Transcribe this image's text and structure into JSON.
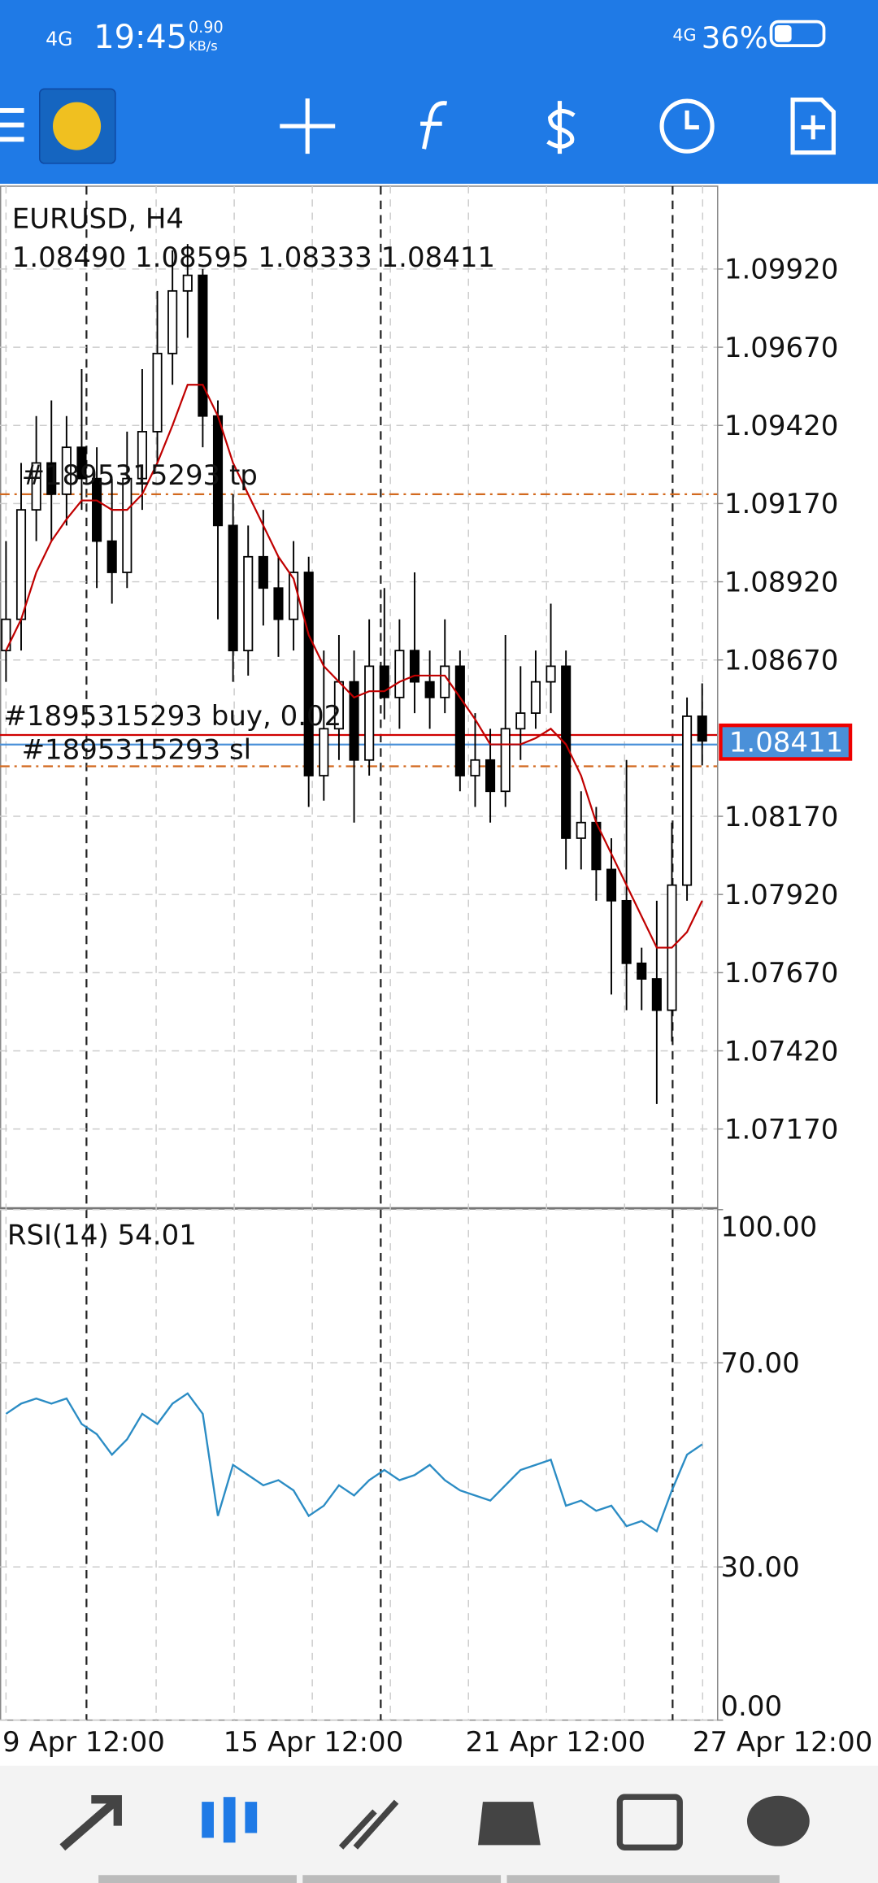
{
  "status_bar": {
    "network": "4G",
    "time": "19:45",
    "speed": "0.90",
    "speed_unit": "KB/s",
    "network2": "4G",
    "battery": "36%"
  },
  "chart_data": [
    {
      "type": "candlestick",
      "title": "EURUSD, H4",
      "ohlc_label": "1.08490 1.08595 1.08333 1.08411",
      "categories": [
        "9 Apr 12:00",
        null,
        null,
        null,
        null,
        null,
        null,
        null,
        null,
        null,
        null,
        null,
        null,
        null,
        null,
        "15 Apr 12:00",
        null,
        null,
        null,
        null,
        null,
        null,
        null,
        null,
        null,
        null,
        null,
        null,
        null,
        null,
        null,
        "21 Apr 12:00",
        null,
        null,
        null,
        null,
        null,
        null,
        null,
        null,
        null,
        null,
        null,
        null,
        null,
        null,
        "27 Apr 12:00"
      ],
      "open": [
        1.087,
        1.088,
        1.0915,
        1.093,
        1.092,
        1.0935,
        1.0925,
        1.0905,
        1.0895,
        1.0925,
        1.094,
        1.0965,
        1.0985,
        1.099,
        1.0945,
        1.091,
        1.087,
        1.09,
        1.089,
        1.088,
        1.0895,
        1.083,
        1.0845,
        1.086,
        1.0835,
        1.0865,
        1.0855,
        1.087,
        1.086,
        1.0855,
        1.0865,
        1.083,
        1.0835,
        1.0825,
        1.0845,
        1.085,
        1.086,
        1.0865,
        1.081,
        1.0815,
        1.08,
        1.079,
        1.077,
        1.0765,
        1.0755,
        1.0795,
        1.0849
      ],
      "high": [
        1.0905,
        1.093,
        1.0945,
        1.095,
        1.0945,
        1.096,
        1.0935,
        1.0925,
        1.094,
        1.096,
        1.0985,
        1.0998,
        1.1,
        1.0992,
        1.095,
        1.092,
        1.091,
        1.0915,
        1.09,
        1.0905,
        1.09,
        1.087,
        1.0875,
        1.087,
        1.088,
        1.089,
        1.088,
        1.0895,
        1.087,
        1.088,
        1.087,
        1.085,
        1.0845,
        1.0875,
        1.0865,
        1.087,
        1.0885,
        1.087,
        1.0825,
        1.082,
        1.081,
        1.0835,
        1.0775,
        1.079,
        1.0815,
        1.0855,
        1.08595
      ],
      "low": [
        1.086,
        1.087,
        1.0905,
        1.0905,
        1.091,
        1.0915,
        1.089,
        1.0885,
        1.089,
        1.0915,
        1.093,
        1.0955,
        1.097,
        1.0935,
        1.088,
        1.086,
        1.0862,
        1.0878,
        1.0868,
        1.087,
        1.082,
        1.0822,
        1.0835,
        1.0815,
        1.083,
        1.0848,
        1.0845,
        1.085,
        1.0845,
        1.085,
        1.0825,
        1.082,
        1.0815,
        1.082,
        1.0835,
        1.0845,
        1.085,
        1.08,
        1.08,
        1.079,
        1.076,
        1.0755,
        1.0755,
        1.0725,
        1.0745,
        1.079,
        1.08333
      ],
      "close": [
        1.088,
        1.0915,
        1.093,
        1.092,
        1.0935,
        1.0925,
        1.0905,
        1.0895,
        1.0925,
        1.094,
        1.0965,
        1.0985,
        1.099,
        1.0945,
        1.091,
        1.087,
        1.09,
        1.089,
        1.088,
        1.0895,
        1.083,
        1.0845,
        1.086,
        1.0835,
        1.0865,
        1.0855,
        1.087,
        1.086,
        1.0855,
        1.0865,
        1.083,
        1.0835,
        1.0825,
        1.0845,
        1.085,
        1.086,
        1.0865,
        1.081,
        1.0815,
        1.08,
        1.079,
        1.077,
        1.0765,
        1.0755,
        1.0795,
        1.0849,
        1.08411
      ],
      "up_color": "#ffffff",
      "down_color": "#000000",
      "ma": {
        "color": "#c00000",
        "values": [
          1.087,
          1.088,
          1.0895,
          1.0905,
          1.0912,
          1.0918,
          1.0918,
          1.0915,
          1.0915,
          1.092,
          1.093,
          1.0942,
          1.0955,
          1.0955,
          1.0945,
          1.093,
          1.092,
          1.091,
          1.09,
          1.0893,
          1.0875,
          1.0865,
          1.086,
          1.0855,
          1.0857,
          1.0857,
          1.086,
          1.0862,
          1.0862,
          1.0862,
          1.0855,
          1.0848,
          1.084,
          1.084,
          1.084,
          1.0842,
          1.0845,
          1.084,
          1.083,
          1.0815,
          1.0805,
          1.0795,
          1.0785,
          1.0775,
          1.0775,
          1.078,
          1.079
        ]
      },
      "ylim": [
        1.0692,
        1.10185
      ],
      "yticks": [
        {
          "value": 1.0992,
          "label": "1.09920"
        },
        {
          "value": 1.0967,
          "label": "1.09670"
        },
        {
          "value": 1.0942,
          "label": "1.09420"
        },
        {
          "value": 1.0917,
          "label": "1.09170"
        },
        {
          "value": 1.0892,
          "label": "1.08920"
        },
        {
          "value": 1.0867,
          "label": "1.08670"
        },
        {
          "value": 1.0817,
          "label": "1.08170"
        },
        {
          "value": 1.0792,
          "label": "1.07920"
        },
        {
          "value": 1.0767,
          "label": "1.07670"
        },
        {
          "value": 1.0742,
          "label": "1.07420"
        },
        {
          "value": 1.0717,
          "label": "1.07170"
        }
      ],
      "orders": [
        {
          "label": "#1895315293 tp",
          "price": 1.092,
          "color": "#d2691e",
          "dashed": true
        },
        {
          "label": "#1895315293 buy, 0.02",
          "price": 1.0843,
          "color": "#d00000",
          "dashed": false
        },
        {
          "label": "#1895315293 sl",
          "price": 1.0833,
          "color": "#d2691e",
          "dashed": true
        }
      ],
      "bid_color": "#4a90d9",
      "last_label": "1.08411",
      "grid": true
    },
    {
      "type": "line",
      "title": "RSI(14) 54.01",
      "series": [
        {
          "color": "#2b8cc4",
          "values": [
            60,
            62,
            63,
            62,
            63,
            58,
            56,
            52,
            55,
            60,
            58,
            62,
            64,
            60,
            40,
            50,
            48,
            46,
            47,
            45,
            40,
            42,
            46,
            44,
            47,
            49,
            47,
            48,
            50,
            47,
            45,
            44,
            43,
            46,
            49,
            50,
            51,
            42,
            43,
            41,
            42,
            38,
            39,
            37,
            45,
            52,
            54.01
          ]
        }
      ],
      "ylim": [
        0,
        100
      ],
      "yticks": [
        {
          "value": 100,
          "label": "100.00"
        },
        {
          "value": 70,
          "label": "70.00"
        },
        {
          "value": 30,
          "label": "30.00"
        },
        {
          "value": 0,
          "label": "0.00"
        }
      ],
      "grid": true
    }
  ]
}
